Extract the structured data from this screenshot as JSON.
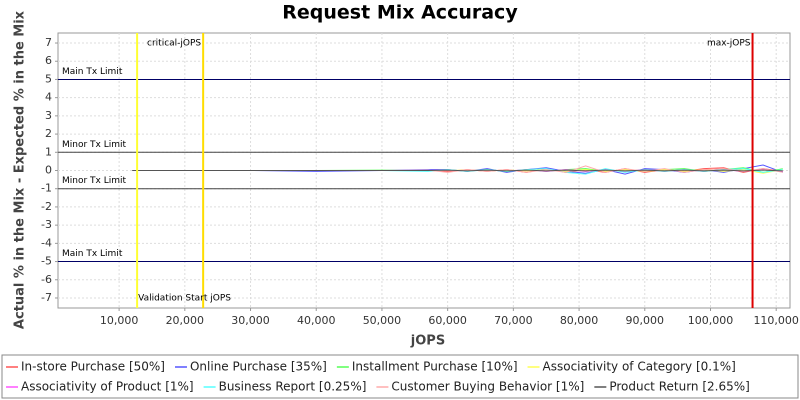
{
  "chart_data": {
    "type": "line",
    "title": "Request Mix Accuracy",
    "x_label": "jOPS",
    "y_label": "Actual % in the Mix - Expected % in the Mix",
    "xlim": [
      700,
      112100
    ],
    "ylim": [
      -7.55,
      7.55
    ],
    "xticks": [
      {
        "value": 10000,
        "label": "10,000"
      },
      {
        "value": 20000,
        "label": "20,000"
      },
      {
        "value": 30000,
        "label": "30,000"
      },
      {
        "value": 40000,
        "label": "40,000"
      },
      {
        "value": 50000,
        "label": "50,000"
      },
      {
        "value": 60000,
        "label": "60,000"
      },
      {
        "value": 70000,
        "label": "70,000"
      },
      {
        "value": 80000,
        "label": "80,000"
      },
      {
        "value": 90000,
        "label": "90,000"
      },
      {
        "value": 100000,
        "label": "100,000"
      },
      {
        "value": 110000,
        "label": "110,000"
      }
    ],
    "yticks": [
      -7,
      -6,
      -5,
      -4,
      -3,
      -2,
      -1,
      0,
      1,
      2,
      3,
      4,
      5,
      6,
      7
    ],
    "grid": true,
    "legend": "bottom",
    "vertical_markers": [
      {
        "value": 12740,
        "label": "Validation Start jOPS",
        "color": "#ffff33"
      },
      {
        "value": 22790,
        "label": "critical-jOPS",
        "color": "#ffdd00"
      },
      {
        "value": 106400,
        "label": "max-jOPS",
        "color": "#dd0000"
      }
    ],
    "horizontal_markers": [
      {
        "value": 5,
        "label": "Main Tx Limit",
        "color": "#000066"
      },
      {
        "value": 1,
        "label": "Minor Tx Limit",
        "color": "#444444"
      },
      {
        "value": -1,
        "label": "Minor Tx Limit",
        "color": "#444444"
      },
      {
        "value": -5,
        "label": "Main Tx Limit",
        "color": "#000066"
      }
    ],
    "x": [
      12000,
      20000,
      30000,
      40000,
      50000,
      57000,
      60000,
      63000,
      66000,
      69000,
      72000,
      75000,
      78000,
      81000,
      84000,
      87000,
      90000,
      93000,
      96000,
      99000,
      102000,
      105000,
      108000,
      111000
    ],
    "series": [
      {
        "name": "In-store Purchase [50%]",
        "color": "#ff5555",
        "values": [
          0,
          0,
          0,
          0,
          0,
          0,
          -0.05,
          0.05,
          -0.05,
          0.05,
          -0.1,
          0.1,
          -0.1,
          0.05,
          -0.1,
          0.1,
          -0.1,
          0.05,
          -0.05,
          0.1,
          0.15,
          -0.1,
          0.1,
          -0.05
        ]
      },
      {
        "name": "Online Purchase [35%]",
        "color": "#5555ff",
        "values": [
          0,
          0,
          0,
          -0.05,
          0,
          0.05,
          0.05,
          -0.05,
          0.1,
          -0.1,
          0.05,
          0.15,
          -0.05,
          -0.15,
          0.05,
          -0.2,
          0.1,
          0.05,
          -0.1,
          0.05,
          -0.1,
          0.1,
          0.3,
          -0.1
        ]
      },
      {
        "name": "Installment Purchase [10%]",
        "color": "#55ff55",
        "values": [
          0,
          0,
          0,
          0,
          0.02,
          -0.02,
          0.03,
          -0.03,
          0.05,
          -0.05,
          0.05,
          -0.05,
          0.05,
          0.1,
          -0.05,
          0.05,
          -0.05,
          0.05,
          0.1,
          -0.05,
          0.05,
          0.15,
          -0.1,
          0.1
        ]
      },
      {
        "name": "Associativity of Category [0.1%]",
        "color": "#ffff55",
        "values": [
          0,
          0,
          0,
          0,
          0,
          0,
          0,
          0.02,
          -0.02,
          0.02,
          -0.02,
          0.05,
          -0.05,
          0.05,
          -0.05,
          0.05,
          -0.05,
          0.05,
          -0.05,
          0.05,
          -0.05,
          0.05,
          -0.15,
          0.05
        ]
      },
      {
        "name": "Associativity of Product [1%]",
        "color": "#ff55ff",
        "values": [
          0,
          0,
          0,
          0,
          0,
          0,
          0.02,
          -0.02,
          0.03,
          -0.03,
          0.05,
          -0.05,
          0.05,
          -0.05,
          0.05,
          -0.05,
          0.05,
          -0.05,
          0.05,
          -0.05,
          0.05,
          -0.05,
          0.05,
          -0.05
        ]
      },
      {
        "name": "Business Report [0.25%]",
        "color": "#55ffff",
        "values": [
          0,
          0,
          0,
          0,
          0,
          -0.05,
          0.05,
          -0.05,
          0.05,
          -0.05,
          0.05,
          0.1,
          -0.1,
          -0.2,
          0.1,
          -0.1,
          0.05,
          -0.05,
          0.05,
          -0.05,
          0.05,
          0.1,
          -0.1,
          0.05
        ]
      },
      {
        "name": "Customer Buying Behavior [1%]",
        "color": "#ffaaaa",
        "values": [
          0,
          0,
          0,
          0,
          0,
          0.02,
          -0.1,
          0.05,
          -0.05,
          0.05,
          -0.1,
          0.05,
          -0.1,
          0.25,
          -0.1,
          0.1,
          -0.05,
          0.1,
          -0.1,
          0.05,
          0.1,
          -0.05,
          0.1,
          -0.1
        ]
      },
      {
        "name": "Product Return [2.65%]",
        "color": "#555555",
        "values": [
          0,
          0,
          0,
          0,
          0,
          0,
          0.02,
          -0.02,
          0.02,
          -0.02,
          0.02,
          -0.02,
          0.02,
          -0.02,
          0.02,
          -0.02,
          0.02,
          -0.02,
          0.02,
          -0.02,
          0.02,
          -0.02,
          0.02,
          -0.02
        ]
      }
    ]
  }
}
